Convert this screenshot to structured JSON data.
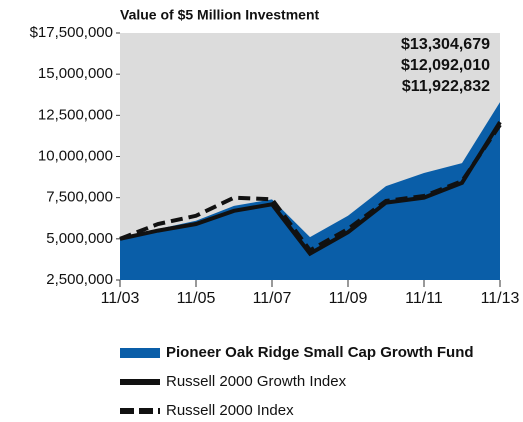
{
  "chart_data": {
    "type": "area",
    "title": "Value of $5 Million Investment",
    "categories": [
      "11/03",
      null,
      "11/05",
      null,
      "11/07",
      null,
      "11/09",
      null,
      "11/11",
      null,
      "11/13"
    ],
    "series": [
      {
        "name": "Pioneer Oak Ridge Small Cap Growth Fund",
        "color": "#0a5ea8",
        "kind": "area",
        "line_style": "solid",
        "values": [
          5000000,
          5600000,
          6100000,
          7000000,
          7400000,
          5100000,
          6400000,
          8200000,
          9000000,
          9600000,
          13304679
        ],
        "value_labels": [
          null,
          null,
          null,
          null,
          null,
          null,
          null,
          null,
          null,
          null,
          "$13,304,679"
        ]
      },
      {
        "name": "Russell 2000 Growth Index",
        "color": "#111111",
        "kind": "line",
        "line_style": "solid",
        "values": [
          5000000,
          5500000,
          5900000,
          6700000,
          7100000,
          4100000,
          5400000,
          7200000,
          7500000,
          8400000,
          12092010
        ],
        "value_labels": [
          null,
          null,
          null,
          null,
          null,
          null,
          null,
          null,
          null,
          null,
          "$12,092,010"
        ]
      },
      {
        "name": "Russell 2000 Index",
        "color": "#111111",
        "kind": "line",
        "line_style": "dashed",
        "values": [
          5000000,
          5900000,
          6400000,
          7500000,
          7400000,
          4300000,
          5600000,
          7300000,
          7600000,
          8500000,
          11922832
        ],
        "value_labels": [
          null,
          null,
          null,
          null,
          null,
          null,
          null,
          null,
          null,
          null,
          "$11,922,832"
        ]
      }
    ],
    "ylim": [
      2500000,
      17500000
    ],
    "yticks": [
      {
        "value": 2500000,
        "label": "2,500,000"
      },
      {
        "value": 5000000,
        "label": "5,000,000"
      },
      {
        "value": 7500000,
        "label": "7,500,000"
      },
      {
        "value": 10000000,
        "label": "10,000,000"
      },
      {
        "value": 12500000,
        "label": "12,500,000"
      },
      {
        "value": 15000000,
        "label": "15,000,000"
      },
      {
        "value": 17500000,
        "label": "$17,500,000"
      }
    ],
    "plot_background": "#dcdcdc"
  }
}
